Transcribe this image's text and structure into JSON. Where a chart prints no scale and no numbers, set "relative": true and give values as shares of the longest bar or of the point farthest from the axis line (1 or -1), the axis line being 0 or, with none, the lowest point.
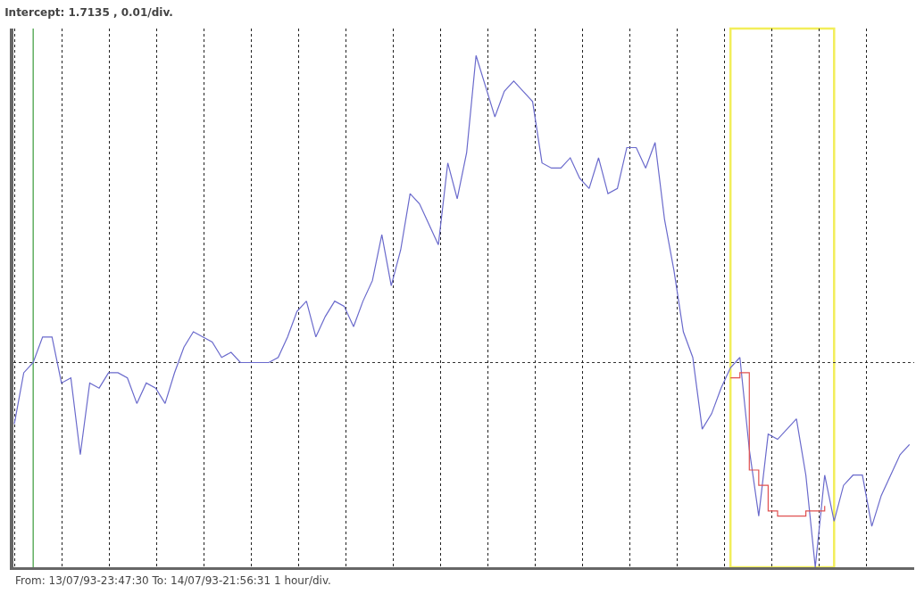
{
  "chart_data": {
    "type": "line",
    "title": "Intercept: 1.7135 , 0.01/div.",
    "annotations": [
      "From: 13/07/93-23:47:30 To: 14/07/93-21:56:31 1 hour/div."
    ],
    "relative": true,
    "marker": "none",
    "line_style": "solid",
    "grid": "x",
    "categories": [
      null,
      null,
      null,
      null,
      null,
      null,
      null,
      null,
      null,
      null,
      null,
      null,
      null,
      null,
      null,
      null,
      null,
      null,
      null,
      null,
      null,
      null,
      null,
      null,
      null,
      null,
      null,
      null,
      null,
      null,
      null,
      null,
      null,
      null,
      null,
      null,
      null,
      null,
      null,
      null,
      null,
      null,
      null,
      null,
      null,
      null,
      null,
      null,
      null,
      null,
      null,
      null,
      null,
      null,
      null,
      null,
      null,
      null,
      null,
      null,
      null,
      null,
      null,
      null,
      null,
      null,
      null,
      null,
      null,
      null,
      null,
      null,
      null,
      null,
      null,
      null,
      null,
      null,
      null,
      null,
      null,
      null,
      null,
      null,
      null,
      null,
      null,
      null,
      null,
      null,
      null,
      null,
      null,
      null,
      null,
      null
    ],
    "ref_lines": [
      {
        "axis": "y",
        "value": 0.4,
        "color": "#333333",
        "line_style": "dotted"
      }
    ],
    "series": [
      {
        "color": "#6a6acc",
        "type": "line",
        "values": [
          0.28,
          0.38,
          0.4,
          0.45,
          0.45,
          0.36,
          0.37,
          0.22,
          0.36,
          0.35,
          0.38,
          0.38,
          0.37,
          0.32,
          0.36,
          0.35,
          0.32,
          0.38,
          0.43,
          0.46,
          0.45,
          0.44,
          0.41,
          0.42,
          0.4,
          0.4,
          0.4,
          0.4,
          0.41,
          0.45,
          0.5,
          0.52,
          0.45,
          0.49,
          0.52,
          0.51,
          0.47,
          0.52,
          0.56,
          0.65,
          0.55,
          0.62,
          0.73,
          0.71,
          0.67,
          0.63,
          0.79,
          0.72,
          0.81,
          1.0,
          0.94,
          0.88,
          0.93,
          0.95,
          0.93,
          0.91,
          0.79,
          0.78,
          0.78,
          0.8,
          0.76,
          0.74,
          0.8,
          0.73,
          0.74,
          0.82,
          0.82,
          0.78,
          0.83,
          0.68,
          0.58,
          0.46,
          0.41,
          0.27,
          0.3,
          0.35,
          0.39,
          0.41,
          0.23,
          0.1,
          0.26,
          0.25,
          0.27,
          0.29,
          0.18,
          0.0,
          0.18,
          0.09,
          0.16,
          0.18,
          0.18,
          0.08,
          0.14,
          0.18,
          0.22,
          0.24
        ]
      },
      {
        "color": "#e05050",
        "type": "step",
        "values": [
          null,
          null,
          null,
          null,
          null,
          null,
          null,
          null,
          null,
          null,
          null,
          null,
          null,
          null,
          null,
          null,
          null,
          null,
          null,
          null,
          null,
          null,
          null,
          null,
          null,
          null,
          null,
          null,
          null,
          null,
          null,
          null,
          null,
          null,
          null,
          null,
          null,
          null,
          null,
          null,
          null,
          null,
          null,
          null,
          null,
          null,
          null,
          null,
          null,
          null,
          null,
          null,
          null,
          null,
          null,
          null,
          null,
          null,
          null,
          null,
          null,
          null,
          null,
          null,
          null,
          null,
          null,
          null,
          null,
          null,
          null,
          null,
          null,
          null,
          null,
          null,
          0.37,
          0.38,
          0.19,
          0.16,
          0.11,
          0.1,
          0.1,
          0.1,
          0.11,
          0.11,
          0.12,
          null,
          null,
          null,
          null,
          null,
          null,
          null,
          null,
          null
        ]
      }
    ]
  }
}
